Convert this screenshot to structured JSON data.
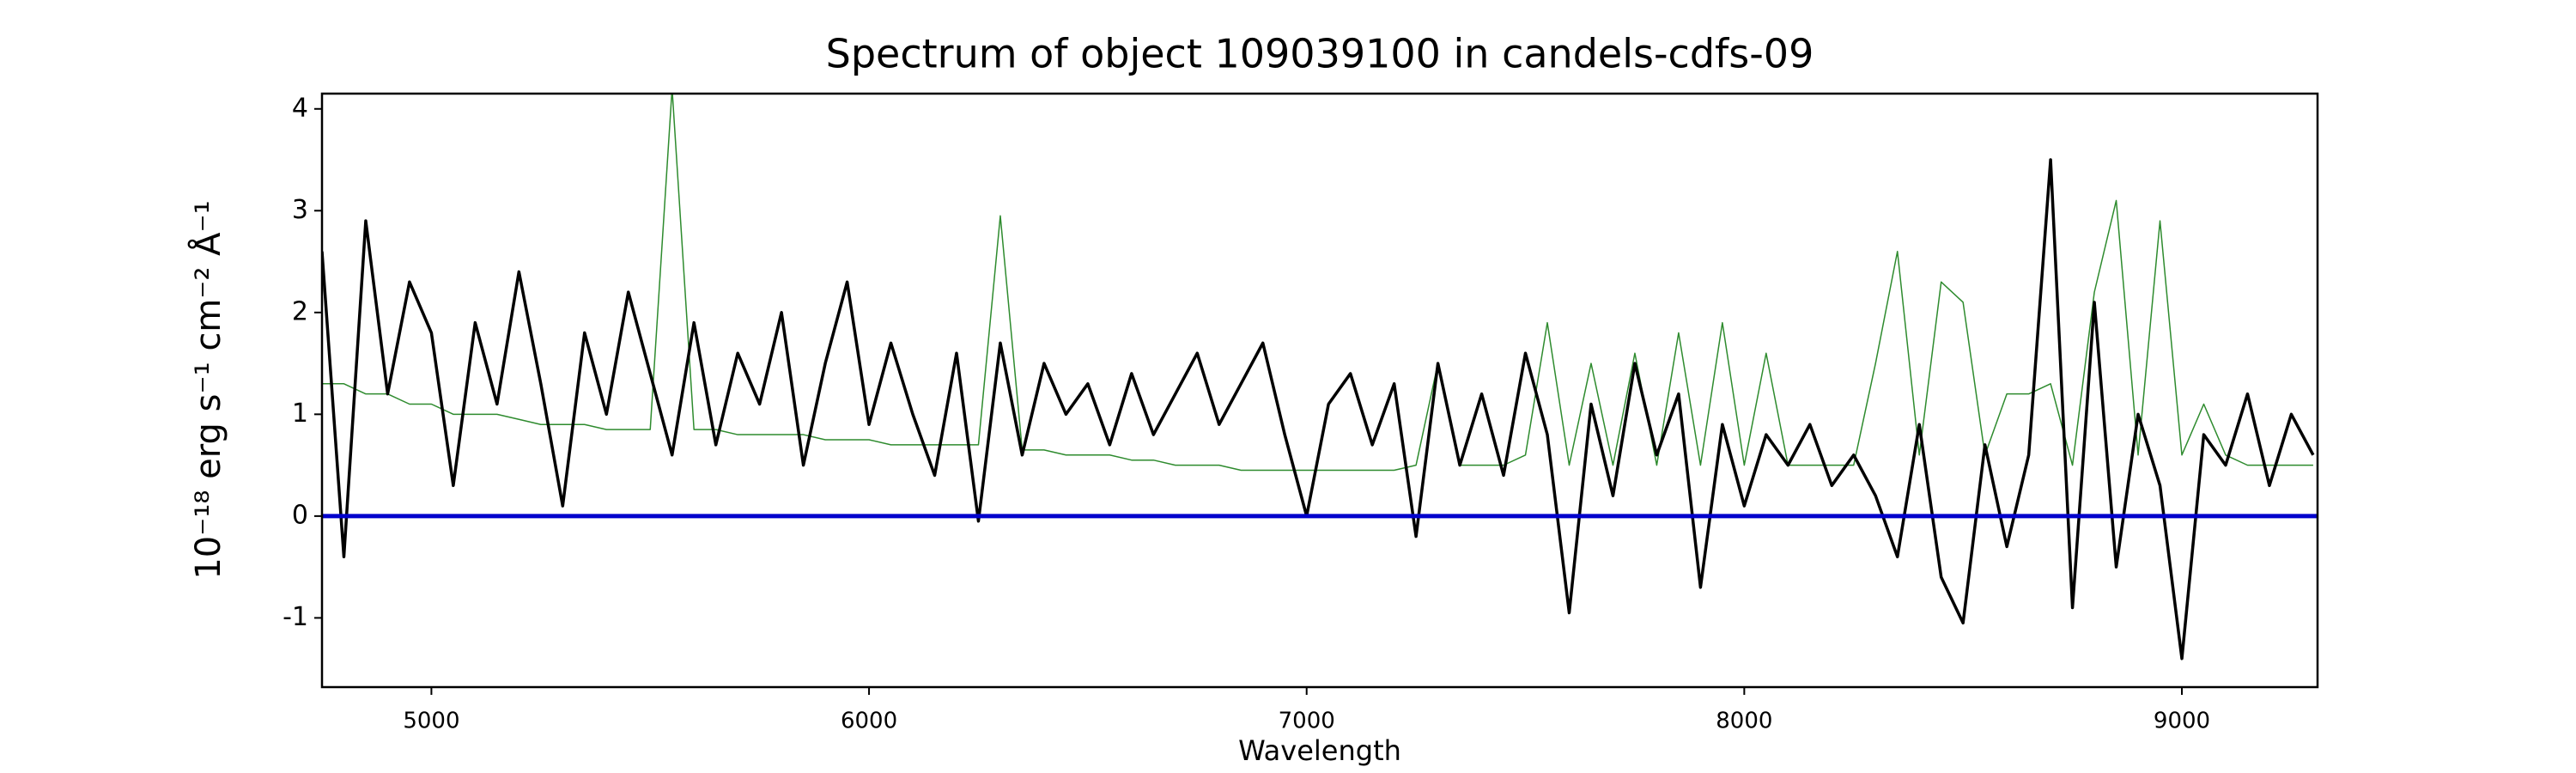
{
  "chart_data": {
    "type": "line",
    "title": "Spectrum of object 109039100 in candels-cdfs-09",
    "x_label": "Wavelength",
    "y_label": "10⁻¹⁸ erg s⁻¹ cm⁻² Å⁻¹",
    "x": [
      4750,
      4800,
      4850,
      4900,
      4950,
      5000,
      5050,
      5100,
      5150,
      5200,
      5250,
      5300,
      5350,
      5400,
      5450,
      5500,
      5550,
      5600,
      5650,
      5700,
      5750,
      5800,
      5850,
      5900,
      5950,
      6000,
      6050,
      6100,
      6150,
      6200,
      6250,
      6300,
      6350,
      6400,
      6450,
      6500,
      6550,
      6600,
      6650,
      6700,
      6750,
      6800,
      6850,
      6900,
      6950,
      7000,
      7050,
      7100,
      7150,
      7200,
      7250,
      7300,
      7350,
      7400,
      7450,
      7500,
      7550,
      7600,
      7650,
      7700,
      7750,
      7800,
      7850,
      7900,
      7950,
      8000,
      8050,
      8100,
      8150,
      8200,
      8250,
      8300,
      8350,
      8400,
      8450,
      8500,
      8550,
      8600,
      8650,
      8700,
      8750,
      8800,
      8850,
      8900,
      8950,
      9000,
      9050,
      9100,
      9150,
      9200,
      9250,
      9300
    ],
    "series": [
      {
        "color": "#2e8b2e",
        "width": 1.5,
        "values": [
          1.3,
          1.3,
          1.2,
          1.2,
          1.1,
          1.1,
          1.0,
          1.0,
          1.0,
          0.95,
          0.9,
          0.9,
          0.9,
          0.85,
          0.85,
          0.85,
          4.2,
          0.85,
          0.85,
          0.8,
          0.8,
          0.8,
          0.8,
          0.75,
          0.75,
          0.75,
          0.7,
          0.7,
          0.7,
          0.7,
          0.7,
          2.95,
          0.65,
          0.65,
          0.6,
          0.6,
          0.6,
          0.55,
          0.55,
          0.5,
          0.5,
          0.5,
          0.45,
          0.45,
          0.45,
          0.45,
          0.45,
          0.45,
          0.45,
          0.45,
          0.5,
          1.5,
          0.5,
          0.5,
          0.5,
          0.6,
          1.9,
          0.5,
          1.5,
          0.5,
          1.6,
          0.5,
          1.8,
          0.5,
          1.9,
          0.5,
          1.6,
          0.5,
          0.5,
          0.5,
          0.5,
          1.5,
          2.6,
          0.6,
          2.3,
          2.1,
          0.6,
          1.2,
          1.2,
          1.3,
          0.5,
          2.2,
          3.1,
          0.6,
          2.9,
          0.6,
          1.1,
          0.6,
          0.5,
          0.5,
          0.5,
          0.5
        ]
      },
      {
        "color": "#000000",
        "width": 3.5,
        "values": [
          2.6,
          -0.4,
          2.9,
          1.2,
          2.3,
          1.8,
          0.3,
          1.9,
          1.1,
          2.4,
          1.3,
          0.1,
          1.8,
          1.0,
          2.2,
          1.4,
          0.6,
          1.9,
          0.7,
          1.6,
          1.1,
          2.0,
          0.5,
          1.5,
          2.3,
          0.9,
          1.7,
          1.0,
          0.4,
          1.6,
          -0.05,
          1.7,
          0.6,
          1.5,
          1.0,
          1.3,
          0.7,
          1.4,
          0.8,
          1.2,
          1.6,
          0.9,
          1.3,
          1.7,
          0.8,
          0.0,
          1.1,
          1.4,
          0.7,
          1.3,
          -0.2,
          1.5,
          0.5,
          1.2,
          0.4,
          1.6,
          0.8,
          -0.95,
          1.1,
          0.2,
          1.5,
          0.6,
          1.2,
          -0.7,
          0.9,
          0.1,
          0.8,
          0.5,
          0.9,
          0.3,
          0.6,
          0.2,
          -0.4,
          0.9,
          -0.6,
          -1.05,
          0.7,
          -0.3,
          0.6,
          3.5,
          -0.9,
          2.1,
          -0.5,
          1.0,
          0.3,
          -1.4,
          0.8,
          0.5,
          1.2,
          0.3,
          1.0,
          0.6
        ]
      }
    ],
    "zero_line": {
      "value": 0,
      "color": "#0000cc"
    },
    "xlim": [
      4750,
      9310
    ],
    "ylim": [
      -1.68,
      4.15
    ],
    "xticks": [
      5000,
      6000,
      7000,
      8000,
      9000
    ],
    "yticks": [
      -1,
      0,
      1,
      2,
      3,
      4
    ]
  }
}
